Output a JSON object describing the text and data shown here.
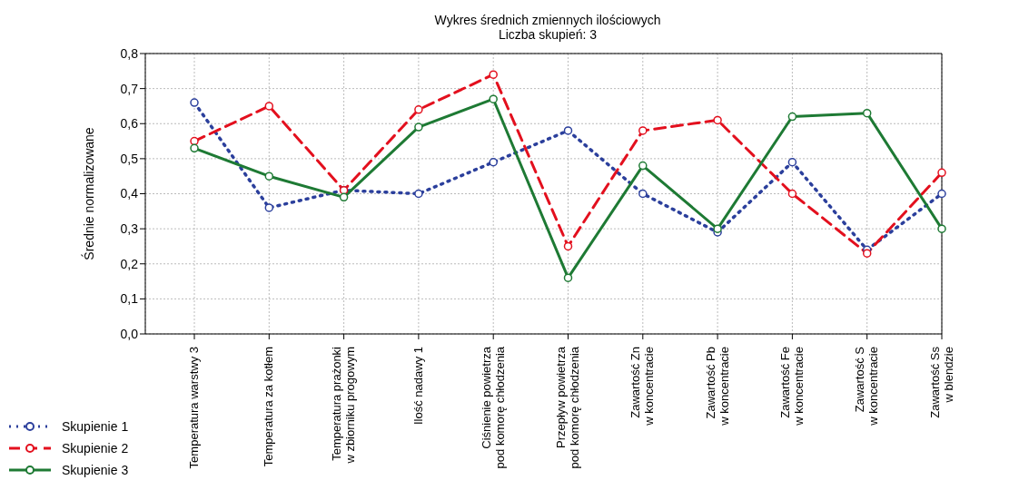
{
  "chart_data": {
    "type": "line",
    "title": "Wykres średnich zmiennych ilościowych",
    "subtitle": "Liczba skupień: 3",
    "ylabel": "Średnie normalizowane",
    "categories": [
      "Temperatura warstwy 3",
      "Temperatura za kotłem",
      "Temperatura prażonki\nw zbiorniku progowym",
      "Ilość nadawy 1",
      "Ciśnienie powietrza\npod komorę chłodzenia",
      "Przepływ powietrza\npod komorę chłodzenia",
      "Zawartość Zn\nw koncentracie",
      "Zawartość Pb\nw koncentracie",
      "Zawartość Fe\nw koncentracie",
      "Zawartość S\nw koncentracie",
      "Zawartość Ss\nw blendzie"
    ],
    "series": [
      {
        "name": "Skupienie 1",
        "color": "#2b3f9c",
        "line_style": "dotted",
        "values": [
          0.66,
          0.36,
          0.41,
          0.4,
          0.49,
          0.58,
          0.4,
          0.29,
          0.49,
          0.24,
          0.4
        ]
      },
      {
        "name": "Skupienie 2",
        "color": "#e3101e",
        "line_style": "dashed",
        "values": [
          0.55,
          0.65,
          0.41,
          0.64,
          0.74,
          0.25,
          0.58,
          0.61,
          0.4,
          0.23,
          0.46
        ]
      },
      {
        "name": "Skupienie 3",
        "color": "#1e7a34",
        "line_style": "solid",
        "values": [
          0.53,
          0.45,
          0.39,
          0.59,
          0.67,
          0.16,
          0.48,
          0.3,
          0.62,
          0.63,
          0.3
        ]
      }
    ],
    "ylim": [
      0,
      0.8
    ],
    "yticks": [
      {
        "value": 0,
        "label": "0,0"
      },
      {
        "value": 0.1,
        "label": "0,1"
      },
      {
        "value": 0.2,
        "label": "0,2"
      },
      {
        "value": 0.3,
        "label": "0,3"
      },
      {
        "value": 0.4,
        "label": "0,4"
      },
      {
        "value": 0.5,
        "label": "0,5"
      },
      {
        "value": 0.6,
        "label": "0,6"
      },
      {
        "value": 0.7,
        "label": "0,7"
      },
      {
        "value": 0.8,
        "label": "0,8"
      }
    ],
    "grid": true,
    "legend": "bottom left",
    "marker": "circle"
  }
}
